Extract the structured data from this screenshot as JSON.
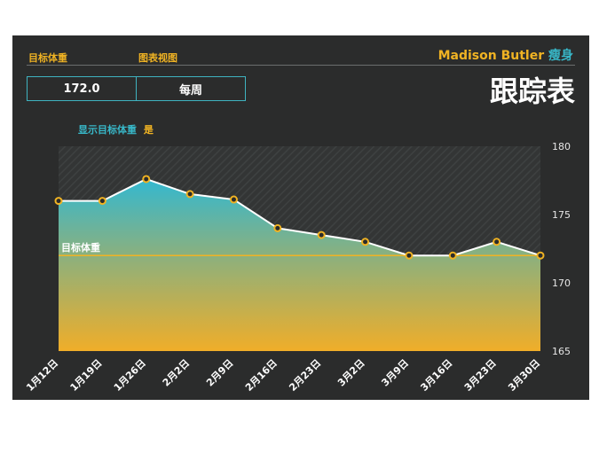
{
  "header": {
    "goal_weight_label": "目标体重",
    "chart_view_label": "图表视图",
    "user_name": "Madison Butler",
    "mode": "瘦身",
    "title": "跟踪表",
    "goal_weight_value": "172.0",
    "chart_view_value": "每周"
  },
  "options": {
    "show_goal_label": "显示目标体重",
    "show_goal_value": "是"
  },
  "colors": {
    "panel": "#2b2c2c",
    "accent_orange": "#f0b323",
    "accent_teal": "#38b8c9",
    "line": "#ffffff"
  },
  "chart_data": {
    "type": "area",
    "categories": [
      "1月12日",
      "1月19日",
      "1月26日",
      "2月2日",
      "2月9日",
      "2月16日",
      "2月23日",
      "3月2日",
      "3月9日",
      "3月16日",
      "3月23日",
      "3月30日"
    ],
    "values": [
      176,
      176,
      177.6,
      176.5,
      176.1,
      174,
      173.5,
      173,
      172,
      172,
      173,
      172
    ],
    "goal": 172,
    "goal_label": "目标体重",
    "ylim": [
      165,
      180
    ],
    "yticks": [
      165,
      170,
      175,
      180
    ],
    "y_axis_position": "right"
  }
}
